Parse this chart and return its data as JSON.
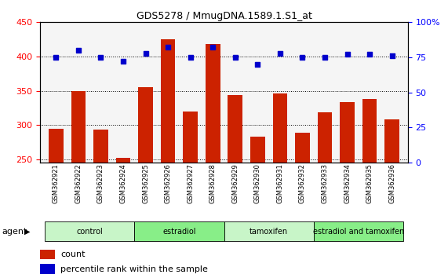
{
  "title": "GDS5278 / MmugDNA.1589.1.S1_at",
  "samples": [
    "GSM362921",
    "GSM362922",
    "GSM362923",
    "GSM362924",
    "GSM362925",
    "GSM362926",
    "GSM362927",
    "GSM362928",
    "GSM362929",
    "GSM362930",
    "GSM362931",
    "GSM362932",
    "GSM362933",
    "GSM362934",
    "GSM362935",
    "GSM362936"
  ],
  "counts": [
    294,
    350,
    293,
    252,
    355,
    425,
    320,
    418,
    344,
    283,
    346,
    289,
    318,
    333,
    338,
    308
  ],
  "percentile_ranks": [
    75,
    80,
    75,
    72,
    78,
    82,
    75,
    82,
    75,
    70,
    78,
    75,
    75,
    77,
    77,
    76
  ],
  "groups": [
    {
      "label": "control",
      "start": 0,
      "end": 4,
      "color": "#c8f5c8"
    },
    {
      "label": "estradiol",
      "start": 4,
      "end": 8,
      "color": "#88ee88"
    },
    {
      "label": "tamoxifen",
      "start": 8,
      "end": 12,
      "color": "#c8f5c8"
    },
    {
      "label": "estradiol and tamoxifen",
      "start": 12,
      "end": 16,
      "color": "#88ee88"
    }
  ],
  "ylim_left": [
    245,
    450
  ],
  "ylim_right": [
    0,
    100
  ],
  "yticks_left": [
    250,
    300,
    350,
    400,
    450
  ],
  "yticks_right": [
    0,
    25,
    50,
    75,
    100
  ],
  "bar_color": "#cc2200",
  "dot_color": "#0000cc",
  "bar_width": 0.65,
  "background_color": "#ffffff",
  "agent_label": "agent",
  "legend_count": "count",
  "legend_percentile": "percentile rank within the sample",
  "plot_bg": "#f5f5f5"
}
